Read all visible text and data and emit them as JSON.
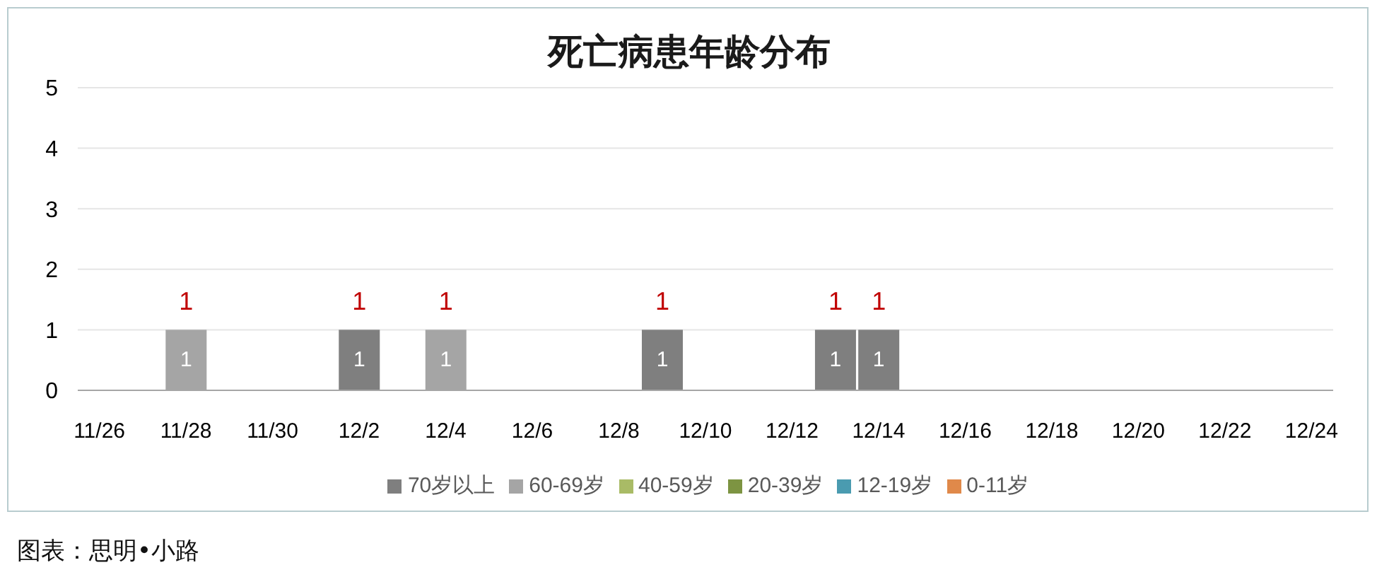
{
  "chart_data": {
    "type": "bar",
    "title": "死亡病患年龄分布",
    "categories": [
      "11/26",
      null,
      "11/28",
      null,
      "11/30",
      null,
      "12/2",
      null,
      "12/4",
      null,
      "12/6",
      null,
      "12/8",
      null,
      "12/10",
      null,
      "12/12",
      null,
      "12/14",
      null,
      "12/16",
      null,
      "12/18",
      null,
      "12/20",
      null,
      "12/22",
      null,
      "12/24"
    ],
    "series": [
      {
        "name": "70岁以上",
        "color": "#7f7f7f",
        "values": [
          null,
          null,
          null,
          null,
          null,
          null,
          1,
          null,
          null,
          null,
          null,
          null,
          null,
          1,
          null,
          null,
          null,
          1,
          1,
          null,
          null,
          null,
          null,
          null,
          null,
          null,
          null,
          null,
          null
        ]
      },
      {
        "name": "60-69岁",
        "color": "#a5a5a5",
        "values": [
          null,
          null,
          1,
          null,
          null,
          null,
          null,
          null,
          1,
          null,
          null,
          null,
          null,
          null,
          null,
          null,
          null,
          null,
          null,
          null,
          null,
          null,
          null,
          null,
          null,
          null,
          null,
          null,
          null
        ]
      },
      {
        "name": "40-59岁",
        "color": "#a9bb66",
        "values": [
          null,
          null,
          null,
          null,
          null,
          null,
          null,
          null,
          null,
          null,
          null,
          null,
          null,
          null,
          null,
          null,
          null,
          null,
          null,
          null,
          null,
          null,
          null,
          null,
          null,
          null,
          null,
          null,
          null
        ]
      },
      {
        "name": "20-39岁",
        "color": "#7d9442",
        "values": [
          null,
          null,
          null,
          null,
          null,
          null,
          null,
          null,
          null,
          null,
          null,
          null,
          null,
          null,
          null,
          null,
          null,
          null,
          null,
          null,
          null,
          null,
          null,
          null,
          null,
          null,
          null,
          null,
          null
        ]
      },
      {
        "name": "12-19岁",
        "color": "#4a9bb0",
        "values": [
          null,
          null,
          null,
          null,
          null,
          null,
          null,
          null,
          null,
          null,
          null,
          null,
          null,
          null,
          null,
          null,
          null,
          null,
          null,
          null,
          null,
          null,
          null,
          null,
          null,
          null,
          null,
          null,
          null
        ]
      },
      {
        "name": "0-11岁",
        "color": "#e0894a",
        "values": [
          null,
          null,
          null,
          null,
          null,
          null,
          null,
          null,
          null,
          null,
          null,
          null,
          null,
          null,
          null,
          null,
          null,
          null,
          null,
          null,
          null,
          null,
          null,
          null,
          null,
          null,
          null,
          null,
          null
        ]
      }
    ],
    "stacked": true,
    "data_labels": true,
    "totals": [
      null,
      null,
      "1",
      null,
      null,
      null,
      "1",
      null,
      "1",
      null,
      null,
      null,
      null,
      "1",
      null,
      null,
      null,
      "1",
      "1",
      null,
      null,
      null,
      null,
      null,
      null,
      null,
      null,
      null,
      null
    ],
    "ylim": [
      0,
      5
    ],
    "yticks": [
      0,
      1,
      2,
      3,
      4,
      5
    ],
    "grid": "y",
    "legend": "bottom",
    "annotations": [
      "图表：思明•小路"
    ]
  }
}
